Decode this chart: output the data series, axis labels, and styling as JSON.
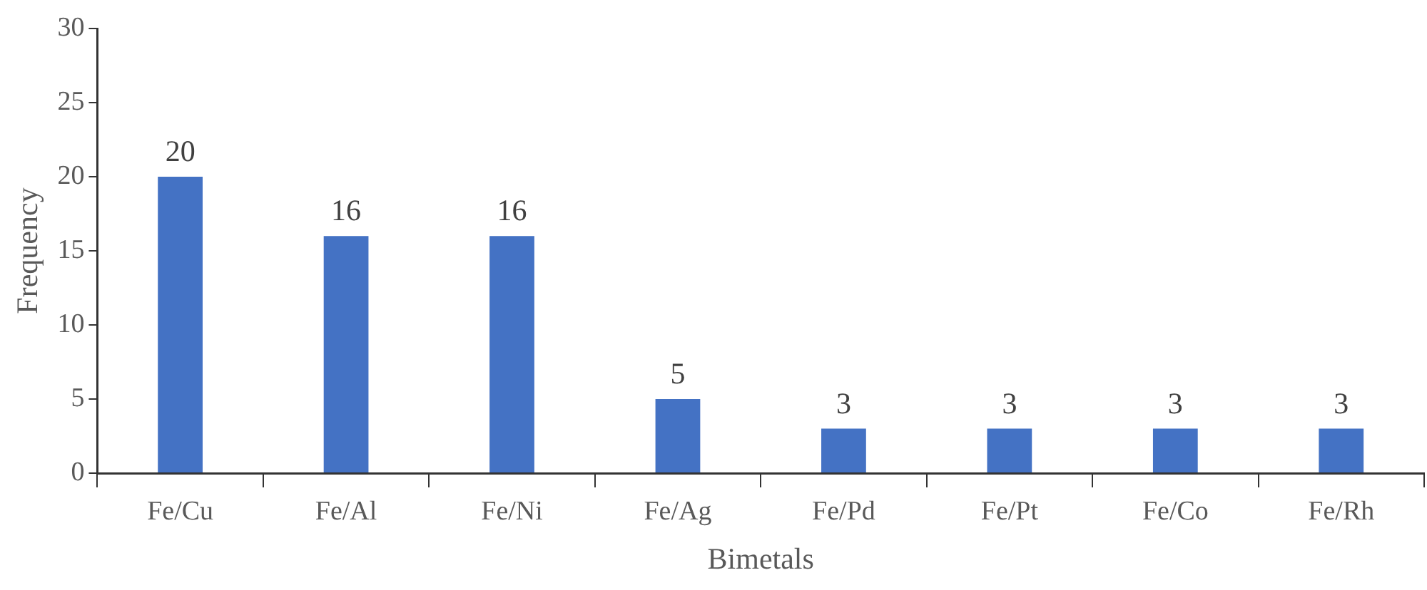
{
  "chart_data": {
    "type": "bar",
    "xlabel": "Bimetals",
    "ylabel": "Frequency",
    "categories": [
      "Fe/Cu",
      "Fe/Al",
      "Fe/Ni",
      "Fe/Ag",
      "Fe/Pd",
      "Fe/Pt",
      "Fe/Co",
      "Fe/Rh"
    ],
    "values": [
      20,
      16,
      16,
      5,
      3,
      3,
      3,
      3
    ],
    "color": "#4472c4",
    "ylim": [
      0,
      30
    ],
    "yticks": [
      0,
      5,
      10,
      15,
      20,
      25,
      30
    ],
    "grid": false,
    "legend": false,
    "data_labels": true
  }
}
